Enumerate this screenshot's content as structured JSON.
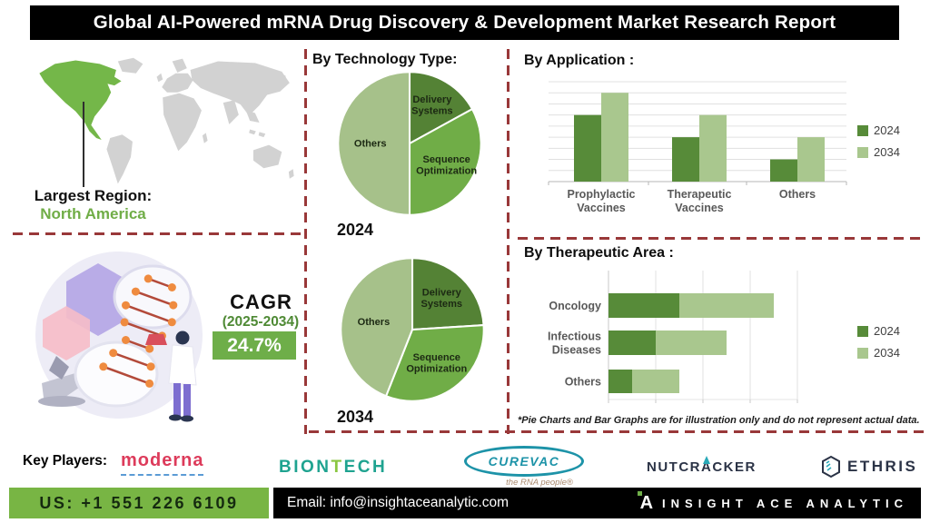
{
  "title_bar": {
    "title": "Global AI-Powered mRNA Drug Discovery & Development Market Research Report"
  },
  "left_panel": {
    "largest_region_label": "Largest Region:",
    "largest_region_value": "North America",
    "cagr_label": "CAGR",
    "cagr_period": "(2025-2034)",
    "cagr_value": "24.7%"
  },
  "tech_section": {
    "heading": "By Technology Type:"
  },
  "application_section": {
    "heading": "By Application :"
  },
  "therapeutic_section": {
    "heading": "By Therapeutic Area :"
  },
  "footnote": "*Pie Charts and Bar Graphs are for illustration only and do not represent actual data.",
  "key_players": {
    "label": "Key Players:",
    "moderna": "moderna",
    "biontech_1": "BION",
    "biontech_t": "T",
    "biontech_2": "ECH",
    "curevac": "CUREVAC",
    "curevac_tagline": "the RNA people®",
    "nutcracker_1": "NUTCR",
    "nutcracker_a": "A",
    "nutcracker_2": "CKER",
    "ethris": "ETHRIS"
  },
  "footer": {
    "phone": "US: +1 551 226 6109",
    "email": "Email: info@insightaceanalytic.com",
    "brand": "INSIGHT ACE ANALYTIC",
    "logo_letter": "A"
  },
  "colors": {
    "accent_green": "#74b749",
    "map_gray": "#d2d2d2",
    "divider_red": "#993839",
    "cagr_box_green": "#6eae49",
    "phone_bar_green": "#78b544",
    "series_2024": "#578b39",
    "series_2034": "#a9c78e"
  },
  "icons": {
    "nutcracker_rocket": "triangle-up-teal",
    "ethris_hexagon": "hexagon-outline-with-dashes",
    "insightace_logo": "white-A-with-green-dot",
    "map_pointer": "vertical-callout-line"
  },
  "chart_data": [
    {
      "type": "pie",
      "section": "By Technology Type:",
      "year_label": "2024",
      "labels": [
        "Delivery Systems",
        "Sequence Optimization",
        "Others"
      ],
      "values": [
        17,
        33,
        50
      ],
      "colors": [
        "#548235",
        "#70ad47",
        "#a6c18a"
      ]
    },
    {
      "type": "pie",
      "section": "By Technology Type:",
      "year_label": "2034",
      "labels": [
        "Delivery Systems",
        "Sequence Optimization",
        "Others"
      ],
      "values": [
        24,
        32,
        44
      ],
      "colors": [
        "#548235",
        "#70ad47",
        "#a6c18a"
      ]
    },
    {
      "type": "bar",
      "title": "By Application :",
      "categories": [
        "Prophylactic Vaccines",
        "Therapeutic Vaccines",
        "Others"
      ],
      "series": [
        {
          "name": "2024",
          "color": "#578b39",
          "values": [
            6,
            4,
            2
          ]
        },
        {
          "name": "2034",
          "color": "#a9c78e",
          "values": [
            8,
            6,
            4
          ]
        }
      ],
      "ylim": [
        0,
        9
      ],
      "gridlines": true,
      "legend_position": "right"
    },
    {
      "type": "bar-horizontal-stacked",
      "title": "By Therapeutic Area :",
      "categories": [
        "Oncology",
        "Infectious Diseases",
        "Others"
      ],
      "series": [
        {
          "name": "2024",
          "color": "#578b39",
          "values": [
            1.5,
            1,
            0.5
          ]
        },
        {
          "name": "2034",
          "color": "#a9c78e",
          "values": [
            2,
            1.5,
            1
          ]
        }
      ],
      "xlim": [
        0,
        4.5
      ],
      "gridline_step": 1,
      "legend_position": "right"
    }
  ]
}
